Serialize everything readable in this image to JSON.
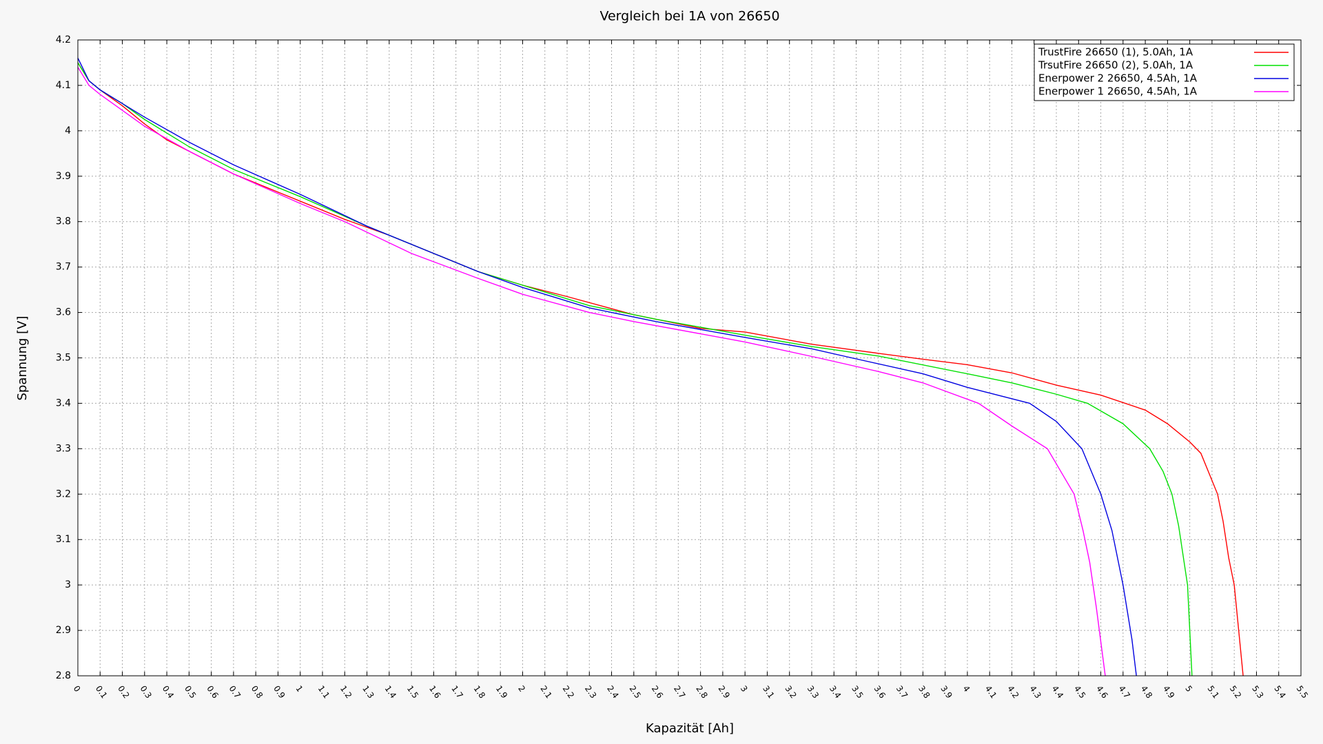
{
  "chart_data": {
    "type": "line",
    "title": "Vergleich bei 1A von 26650",
    "x_label": "Kapazität [Ah]",
    "y_label": "Spannung [V]",
    "xlim": [
      0,
      5.5
    ],
    "ylim": [
      2.8,
      4.2
    ],
    "xticks": [
      0,
      0.1,
      0.2,
      0.3,
      0.4,
      0.5,
      0.6,
      0.7,
      0.8,
      0.9,
      1,
      1.1,
      1.2,
      1.3,
      1.4,
      1.5,
      1.6,
      1.7,
      1.8,
      1.9,
      2,
      2.1,
      2.2,
      2.3,
      2.4,
      2.5,
      2.6,
      2.7,
      2.8,
      2.9,
      3,
      3.1,
      3.2,
      3.3,
      3.4,
      3.5,
      3.6,
      3.7,
      3.8,
      3.9,
      4,
      4.1,
      4.2,
      4.3,
      4.4,
      4.5,
      4.6,
      4.7,
      4.8,
      4.9,
      5,
      5.1,
      5.2,
      5.3,
      5.4,
      5.5
    ],
    "yticks": [
      2.8,
      2.9,
      3,
      3.1,
      3.2,
      3.3,
      3.4,
      3.5,
      3.6,
      3.7,
      3.8,
      3.9,
      4,
      4.1,
      4.2
    ],
    "grid": true,
    "legend_position": "upper-right",
    "series": [
      {
        "name": "TrustFire 26650 (1), 5.0Ah, 1A",
        "color": "#ff0000",
        "x": [
          0,
          0.05,
          0.1,
          0.2,
          0.3,
          0.4,
          0.5,
          0.6,
          0.7,
          0.8,
          0.9,
          1,
          1.2,
          1.4,
          1.6,
          1.8,
          2,
          2.2,
          2.5,
          2.8,
          3,
          3.3,
          3.6,
          3.8,
          4,
          4.2,
          4.4,
          4.6,
          4.8,
          4.9,
          5,
          5.05,
          5.1,
          5.125,
          5.15,
          5.175,
          5.2,
          5.22,
          5.24
        ],
        "values": [
          4.15,
          4.11,
          4.09,
          4.055,
          4.015,
          3.98,
          3.955,
          3.93,
          3.905,
          3.885,
          3.865,
          3.845,
          3.805,
          3.77,
          3.73,
          3.69,
          3.66,
          3.635,
          3.595,
          3.565,
          3.557,
          3.53,
          3.51,
          3.497,
          3.485,
          3.467,
          3.44,
          3.418,
          3.385,
          3.355,
          3.315,
          3.29,
          3.23,
          3.2,
          3.14,
          3.06,
          3.0,
          2.9,
          2.8
        ]
      },
      {
        "name": "TrsutFire 26650 (2), 5.0Ah, 1A",
        "color": "#00e000",
        "x": [
          0,
          0.05,
          0.1,
          0.2,
          0.3,
          0.5,
          0.7,
          1,
          1.3,
          1.6,
          1.8,
          2,
          2.3,
          2.6,
          3,
          3.3,
          3.6,
          4,
          4.2,
          4.4,
          4.54,
          4.7,
          4.82,
          4.88,
          4.92,
          4.95,
          4.99,
          5.0,
          5.01
        ],
        "values": [
          4.15,
          4.11,
          4.09,
          4.06,
          4.025,
          3.965,
          3.915,
          3.855,
          3.79,
          3.73,
          3.69,
          3.66,
          3.615,
          3.585,
          3.55,
          3.525,
          3.504,
          3.465,
          3.445,
          3.42,
          3.4,
          3.355,
          3.3,
          3.25,
          3.2,
          3.13,
          3.0,
          2.9,
          2.8
        ]
      },
      {
        "name": "Enerpower 2 26650, 4.5Ah, 1A",
        "color": "#0000e0",
        "x": [
          0,
          0.05,
          0.1,
          0.2,
          0.3,
          0.5,
          0.7,
          1,
          1.3,
          1.6,
          1.8,
          2,
          2.3,
          2.6,
          3,
          3.3,
          3.48,
          3.8,
          4,
          4.28,
          4.4,
          4.515,
          4.6,
          4.65,
          4.7,
          4.74,
          4.76
        ],
        "values": [
          4.16,
          4.11,
          4.09,
          4.06,
          4.03,
          3.975,
          3.925,
          3.86,
          3.79,
          3.73,
          3.69,
          3.655,
          3.61,
          3.58,
          3.545,
          3.52,
          3.5,
          3.465,
          3.435,
          3.4,
          3.36,
          3.3,
          3.2,
          3.12,
          3.0,
          2.88,
          2.8
        ]
      },
      {
        "name": "Enerpower 1 26650, 4.5Ah, 1A",
        "color": "#ff00ff",
        "x": [
          0,
          0.05,
          0.1,
          0.3,
          0.5,
          0.7,
          1,
          1.2,
          1.5,
          1.8,
          2,
          2.3,
          2.5,
          3,
          3.33,
          3.6,
          3.8,
          4.05,
          4.2,
          4.36,
          4.42,
          4.48,
          4.52,
          4.55,
          4.58,
          4.62
        ],
        "values": [
          4.14,
          4.1,
          4.08,
          4.01,
          3.955,
          3.905,
          3.84,
          3.8,
          3.73,
          3.675,
          3.64,
          3.6,
          3.58,
          3.535,
          3.5,
          3.47,
          3.445,
          3.4,
          3.35,
          3.3,
          3.25,
          3.2,
          3.12,
          3.05,
          2.95,
          2.8
        ]
      }
    ]
  }
}
